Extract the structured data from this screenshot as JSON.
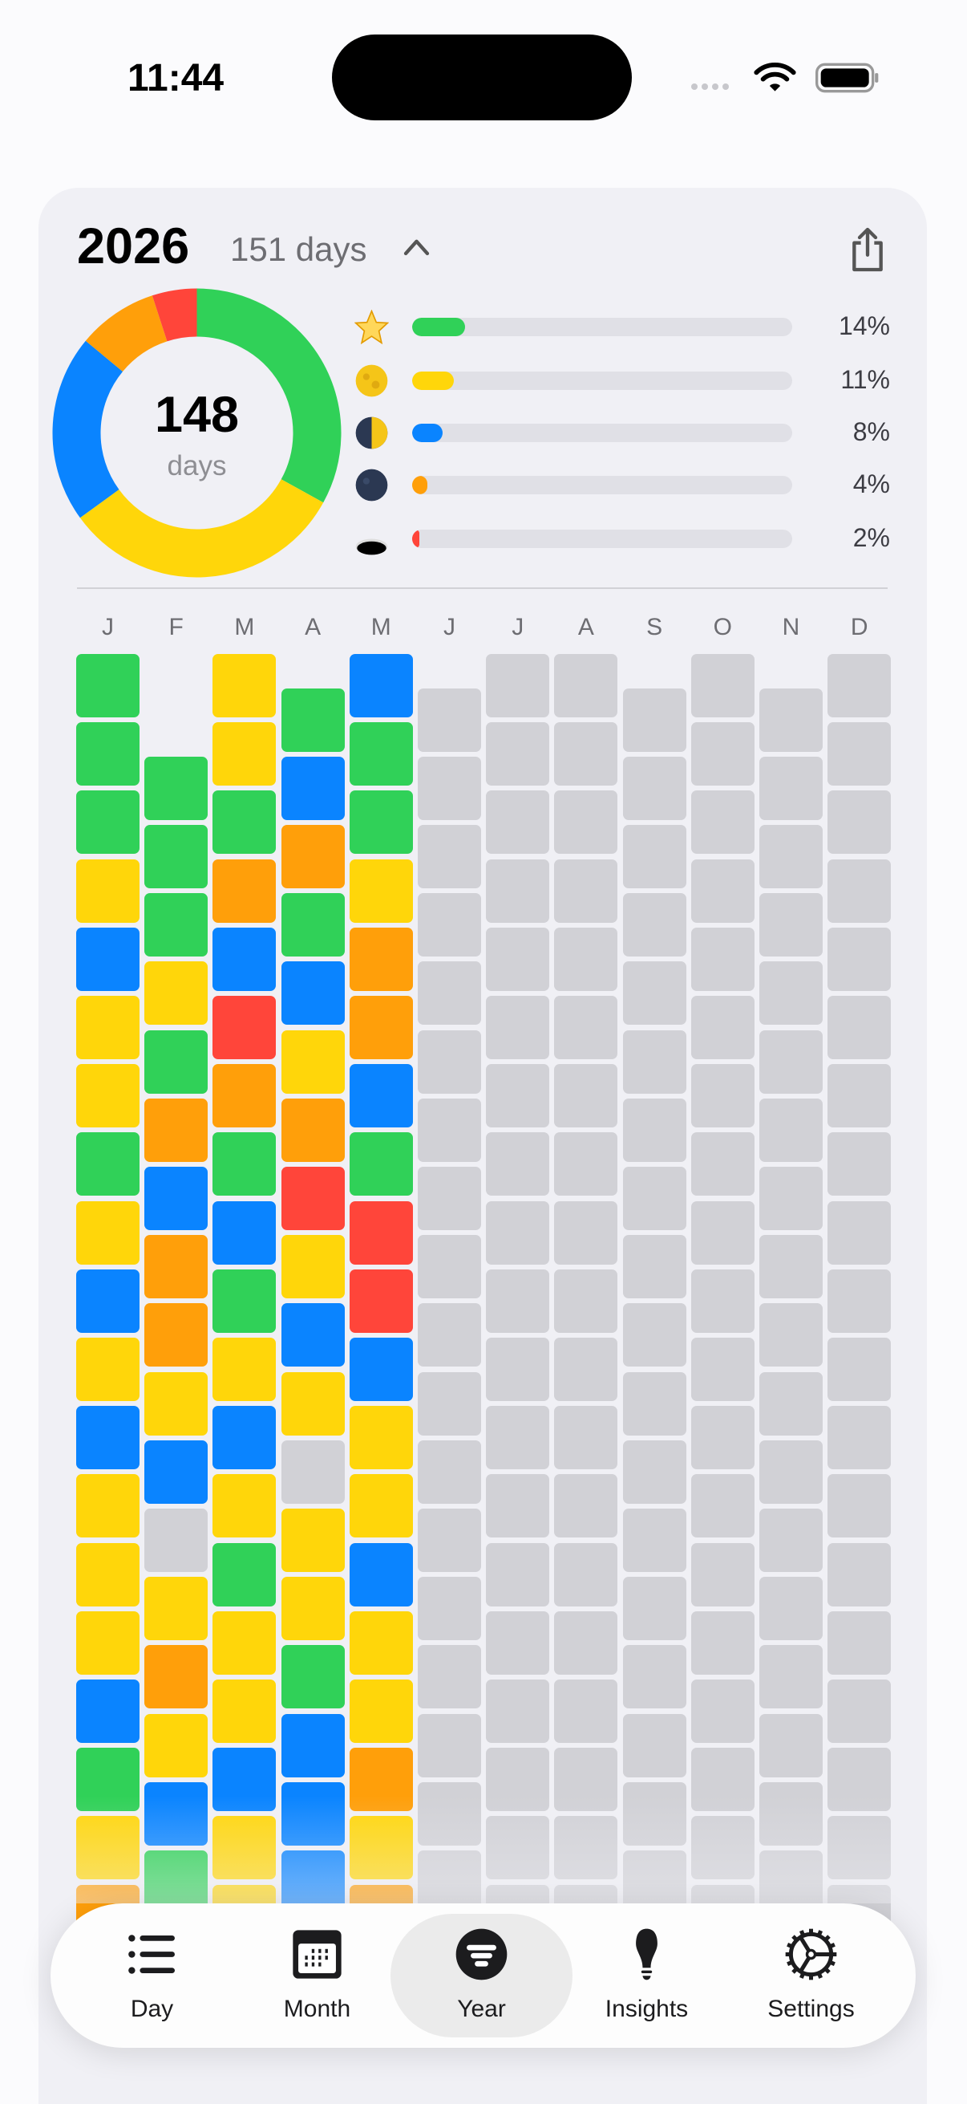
{
  "status_bar": {
    "time": "11:44"
  },
  "header": {
    "year": "2026",
    "days_label": "151 days"
  },
  "summary": {
    "logged_days": "148",
    "logged_label": "days"
  },
  "colors": {
    "g": "#30d158",
    "y": "#ffd60a",
    "b": "#0a84ff",
    "o": "#ff9f0a",
    "r": "#ff453a",
    "empty": "#d1d1d6"
  },
  "moods": [
    {
      "icon": "star-icon",
      "color": "g",
      "percent": 14,
      "label": "14%"
    },
    {
      "icon": "full-moon-icon",
      "color": "y",
      "percent": 11,
      "label": "11%"
    },
    {
      "icon": "half-moon-icon",
      "color": "b",
      "percent": 8,
      "label": "8%"
    },
    {
      "icon": "new-moon-icon",
      "color": "o",
      "percent": 4,
      "label": "4%"
    },
    {
      "icon": "hole-icon",
      "color": "r",
      "percent": 2,
      "label": "2%"
    }
  ],
  "donut_segments": [
    {
      "color": "g",
      "share": 0.33
    },
    {
      "color": "y",
      "share": 0.32
    },
    {
      "color": "b",
      "share": 0.21
    },
    {
      "color": "o",
      "share": 0.09
    },
    {
      "color": "r",
      "share": 0.05
    }
  ],
  "months": [
    {
      "label": "J",
      "days": 31,
      "cells": "gggybyygybybyyybgyo"
    },
    {
      "label": "F",
      "days": 28,
      "cells": "gggygobooybayoybg"
    },
    {
      "label": "M",
      "days": 31,
      "cells": "yygobrogbgybygyybyy"
    },
    {
      "label": "A",
      "days": 30,
      "cells": "gbogbyoryby yygbbbb"
    },
    {
      "label": "M",
      "days": 31,
      "cells": "bggyoobgrrbyybyyoyo"
    },
    {
      "label": "J",
      "days": 30,
      "cells": ""
    },
    {
      "label": "J",
      "days": 31,
      "cells": ""
    },
    {
      "label": "A",
      "days": 31,
      "cells": ""
    },
    {
      "label": "S",
      "days": 30,
      "cells": ""
    },
    {
      "label": "O",
      "days": 31,
      "cells": ""
    },
    {
      "label": "N",
      "days": 30,
      "cells": ""
    },
    {
      "label": "D",
      "days": 31,
      "cells": ""
    }
  ],
  "tabs": [
    {
      "label": "Day",
      "icon": "list-icon"
    },
    {
      "label": "Month",
      "icon": "calendar-icon"
    },
    {
      "label": "Year",
      "icon": "year-filter-icon",
      "selected": true
    },
    {
      "label": "Insights",
      "icon": "lightbulb-icon"
    },
    {
      "label": "Settings",
      "icon": "gear-icon"
    }
  ]
}
